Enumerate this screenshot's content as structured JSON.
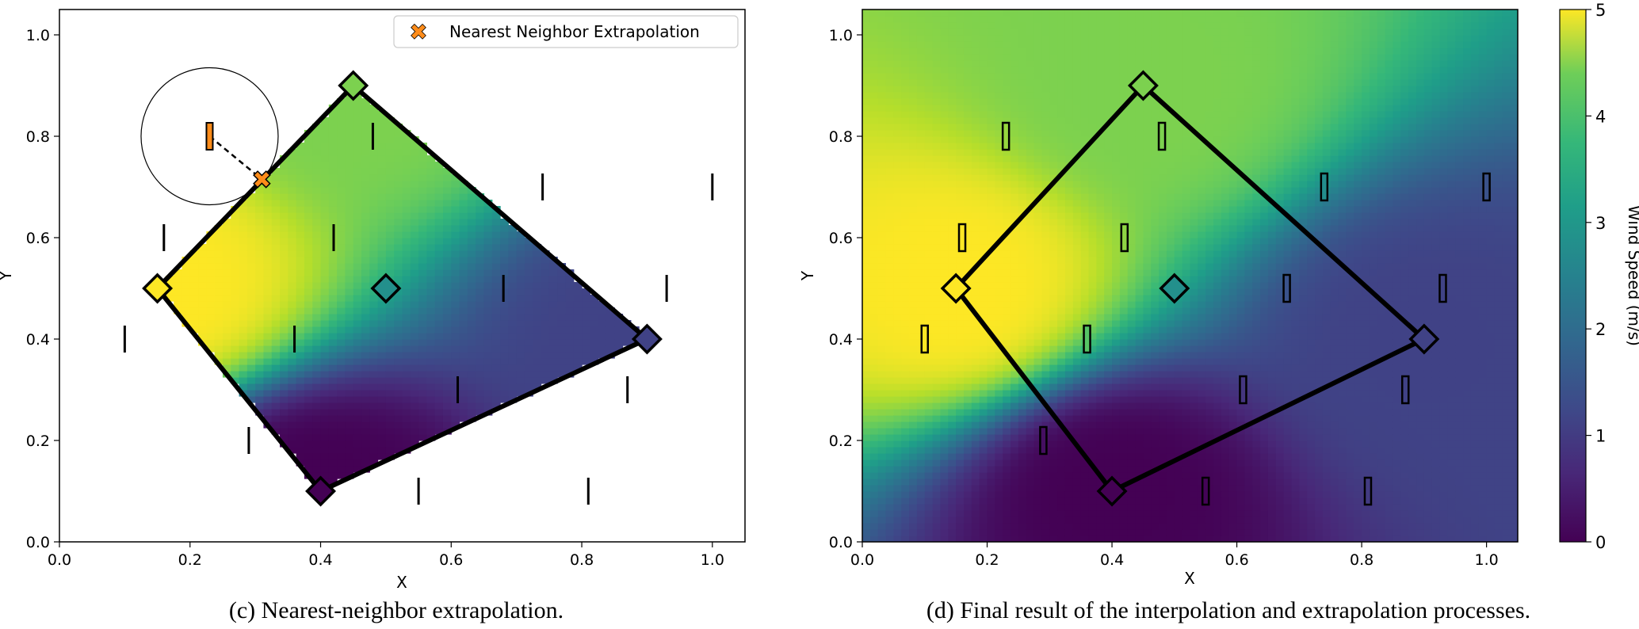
{
  "captions": {
    "left": "(c) Nearest-neighbor extrapolation.",
    "right": "(d) Final result of the interpolation and extrapolation processes."
  },
  "colors": {
    "marker_orange": "#ff8c1a",
    "colormap": "viridis"
  },
  "chart_data": [
    {
      "type": "heatmap",
      "title": "",
      "xlabel": "X",
      "ylabel": "Y",
      "xlim": [
        0.0,
        1.05
      ],
      "ylim": [
        0.0,
        1.05
      ],
      "xticks": [
        "0.0",
        "0.2",
        "0.4",
        "0.6",
        "0.8",
        "1.0"
      ],
      "yticks": [
        "0.0",
        "0.2",
        "0.4",
        "0.6",
        "0.8",
        "1.0"
      ],
      "grid": false,
      "legend_position": "top-right",
      "legend": [
        "Nearest Neighbor Extrapolation"
      ],
      "field_region": "inside_polygon",
      "polygon_vertices": [
        {
          "x": 0.15,
          "y": 0.5,
          "value": 5.0
        },
        {
          "x": 0.45,
          "y": 0.9,
          "value": 4.0
        },
        {
          "x": 0.9,
          "y": 0.4,
          "value": 1.0
        },
        {
          "x": 0.4,
          "y": 0.1,
          "value": 0.0
        }
      ],
      "center_point": {
        "x": 0.5,
        "y": 0.5,
        "value": 2.5
      },
      "query_points": [
        {
          "x": 0.1,
          "y": 0.4
        },
        {
          "x": 0.16,
          "y": 0.6
        },
        {
          "x": 0.23,
          "y": 0.8
        },
        {
          "x": 0.29,
          "y": 0.2
        },
        {
          "x": 0.36,
          "y": 0.4
        },
        {
          "x": 0.42,
          "y": 0.6
        },
        {
          "x": 0.48,
          "y": 0.8
        },
        {
          "x": 0.55,
          "y": 0.1
        },
        {
          "x": 0.61,
          "y": 0.3
        },
        {
          "x": 0.68,
          "y": 0.5
        },
        {
          "x": 0.74,
          "y": 0.7
        },
        {
          "x": 0.81,
          "y": 0.1
        },
        {
          "x": 0.87,
          "y": 0.3
        },
        {
          "x": 0.93,
          "y": 0.5
        },
        {
          "x": 1.0,
          "y": 0.7
        }
      ],
      "highlight_point": {
        "x": 0.23,
        "y": 0.8
      },
      "nearest_neighbor_point": {
        "x": 0.31,
        "y": 0.715
      },
      "search_radius": 0.105
    },
    {
      "type": "heatmap",
      "title": "",
      "xlabel": "X",
      "ylabel": "Y",
      "xlim": [
        0.0,
        1.05
      ],
      "ylim": [
        0.0,
        1.05
      ],
      "xticks": [
        "0.0",
        "0.2",
        "0.4",
        "0.6",
        "0.8",
        "1.0"
      ],
      "yticks": [
        "0.0",
        "0.2",
        "0.4",
        "0.6",
        "0.8",
        "1.0"
      ],
      "grid": false,
      "field_region": "full",
      "polygon_vertices": [
        {
          "x": 0.15,
          "y": 0.5,
          "value": 5.0
        },
        {
          "x": 0.45,
          "y": 0.9,
          "value": 4.0
        },
        {
          "x": 0.9,
          "y": 0.4,
          "value": 1.0
        },
        {
          "x": 0.4,
          "y": 0.1,
          "value": 0.0
        }
      ],
      "center_point": {
        "x": 0.5,
        "y": 0.5,
        "value": 2.5
      },
      "query_points": [
        {
          "x": 0.1,
          "y": 0.4
        },
        {
          "x": 0.16,
          "y": 0.6
        },
        {
          "x": 0.23,
          "y": 0.8
        },
        {
          "x": 0.29,
          "y": 0.2
        },
        {
          "x": 0.36,
          "y": 0.4
        },
        {
          "x": 0.42,
          "y": 0.6
        },
        {
          "x": 0.48,
          "y": 0.8
        },
        {
          "x": 0.55,
          "y": 0.1
        },
        {
          "x": 0.61,
          "y": 0.3
        },
        {
          "x": 0.68,
          "y": 0.5
        },
        {
          "x": 0.74,
          "y": 0.7
        },
        {
          "x": 0.81,
          "y": 0.1
        },
        {
          "x": 0.87,
          "y": 0.3
        },
        {
          "x": 0.93,
          "y": 0.5
        },
        {
          "x": 1.0,
          "y": 0.7
        }
      ],
      "colorbar": {
        "label": "Wind Speed (m/s)",
        "range": [
          0,
          5
        ],
        "ticks": [
          "0",
          "1",
          "2",
          "3",
          "4",
          "5"
        ]
      }
    }
  ]
}
